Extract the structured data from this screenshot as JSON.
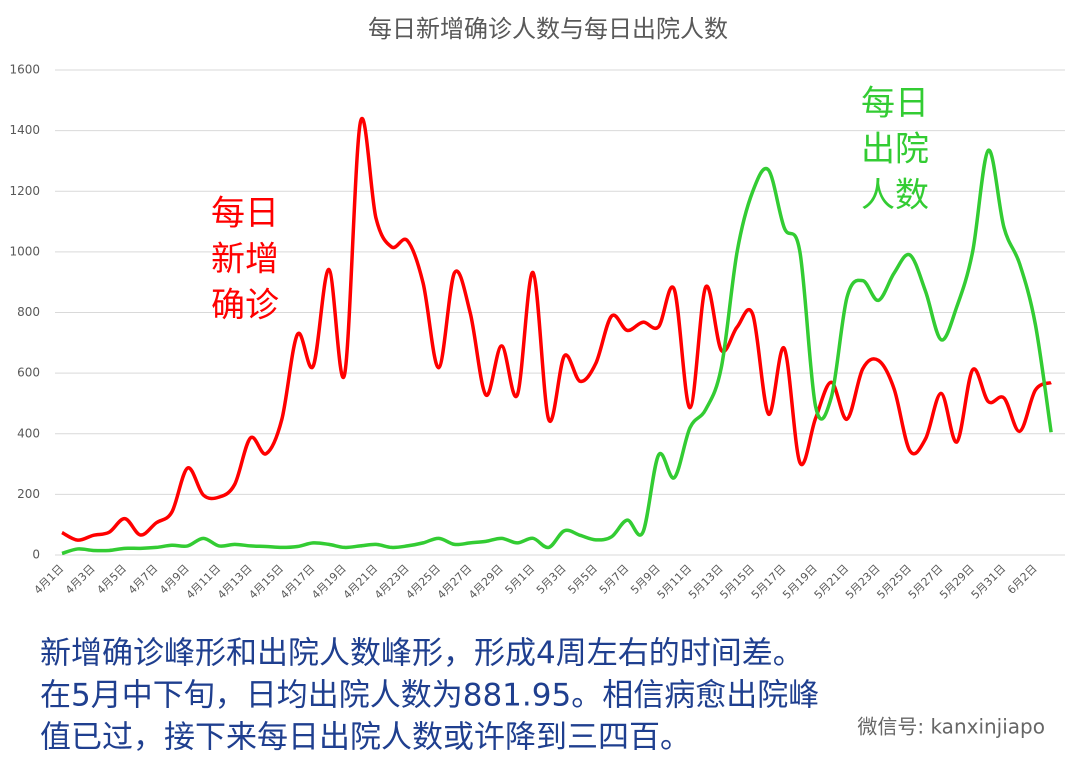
{
  "chart_data": {
    "type": "line",
    "title": "每日新增确诊人数与每日出院人数",
    "categories": [
      "4月1日",
      null,
      "4月3日",
      null,
      "4月5日",
      null,
      "4月7日",
      null,
      "4月9日",
      null,
      "4月11日",
      null,
      "4月13日",
      null,
      "4月15日",
      null,
      "4月17日",
      null,
      "4月19日",
      null,
      "4月21日",
      null,
      "4月23日",
      null,
      "4月25日",
      null,
      "4月27日",
      null,
      "4月29日",
      null,
      "5月1日",
      null,
      "5月3日",
      null,
      "5月5日",
      null,
      "5月7日",
      null,
      "5月9日",
      null,
      "5月11日",
      null,
      "5月13日",
      null,
      "5月15日",
      null,
      "5月17日",
      null,
      "5月19日",
      null,
      "5月21日",
      null,
      "5月23日",
      null,
      "5月25日",
      null,
      "5月27日",
      null,
      "5月29日",
      null,
      "5月31日",
      null,
      "6月2日",
      null
    ],
    "series": [
      {
        "name": "每日新增确诊",
        "color": "#ff0000",
        "values": [
          74,
          49,
          65,
          75,
          120,
          66,
          106,
          142,
          287,
          198,
          191,
          233,
          386,
          334,
          447,
          728,
          623,
          942,
          596,
          1426,
          1111,
          1016,
          1037,
          897,
          618,
          931,
          799,
          528,
          690,
          528,
          932,
          447,
          657,
          573,
          632,
          788,
          741,
          768,
          753,
          876,
          486,
          884,
          675,
          752,
          793,
          465,
          682,
          305,
          451,
          570,
          448,
          614,
          642,
          548,
          344,
          383,
          533,
          373,
          611,
          506,
          518,
          408,
          544,
          569
        ]
      },
      {
        "name": "每日出院人数",
        "color": "#33cc33",
        "values": [
          5,
          20,
          15,
          15,
          22,
          22,
          25,
          32,
          30,
          55,
          30,
          35,
          30,
          28,
          25,
          28,
          40,
          35,
          25,
          30,
          35,
          25,
          30,
          40,
          55,
          35,
          40,
          45,
          55,
          40,
          55,
          25,
          80,
          65,
          50,
          60,
          115,
          75,
          330,
          255,
          420,
          480,
          620,
          1000,
          1200,
          1270,
          1080,
          1000,
          490,
          520,
          850,
          905,
          840,
          930,
          990,
          870,
          710,
          820,
          1000,
          1335,
          1080,
          960,
          760,
          405
        ]
      }
    ],
    "ylim": [
      0,
      1600
    ],
    "yticks": [
      0,
      200,
      400,
      600,
      800,
      1000,
      1200,
      1400,
      1600
    ],
    "grid": true,
    "annotations": [
      {
        "lines": [
          "每日",
          "新增",
          "确诊"
        ],
        "color": "#ff0000"
      },
      {
        "lines": [
          "每日",
          "出院",
          "人数"
        ],
        "color": "#33cc33"
      }
    ]
  },
  "caption": [
    "新增确诊峰形和出院人数峰形，形成4周左右的时间差。",
    "在5月中下旬，日均出院人数为881.95。相信病愈出院峰",
    "值已过，接下来每日出院人数或许降到三四百。"
  ],
  "wechat": "微信号: kanxinjiapo"
}
